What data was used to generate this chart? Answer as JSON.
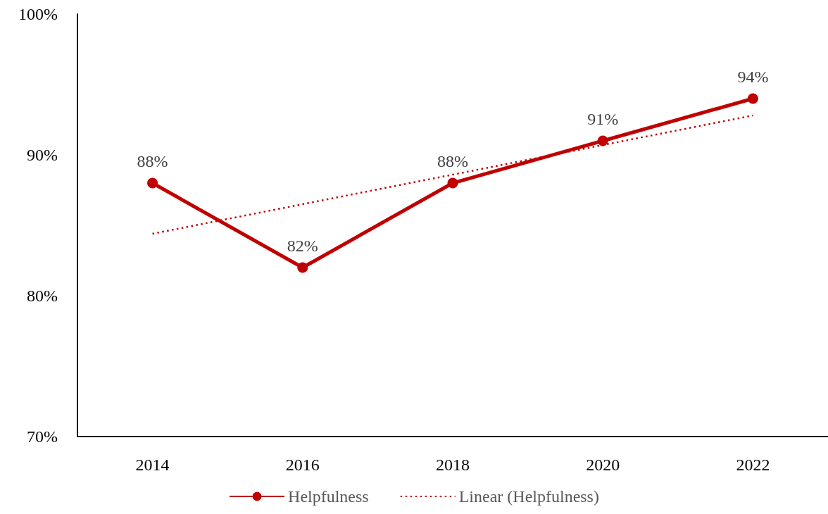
{
  "chart_data": {
    "type": "line",
    "categories": [
      "2014",
      "2016",
      "2018",
      "2020",
      "2022"
    ],
    "series": [
      {
        "name": "Helpfulness",
        "color": "#c00000",
        "values": [
          88,
          82,
          88,
          91,
          94
        ],
        "value_labels": [
          "88%",
          "82%",
          "88%",
          "91%",
          "94%"
        ],
        "marker": "circle",
        "line_style": "solid"
      },
      {
        "name": "Linear (Helpfulness)",
        "type": "line",
        "color": "#c00000",
        "values": [
          84.4,
          86.5,
          88.6,
          90.7,
          92.8
        ],
        "marker": "none",
        "line_style": "dotted"
      }
    ],
    "ylim": [
      70,
      100
    ],
    "yticks": [
      {
        "value": 70,
        "label": "70%"
      },
      {
        "value": 80,
        "label": "80%"
      },
      {
        "value": 90,
        "label": "90%"
      },
      {
        "value": 100,
        "label": "100%"
      }
    ],
    "grid": false,
    "legend": "bottom"
  }
}
